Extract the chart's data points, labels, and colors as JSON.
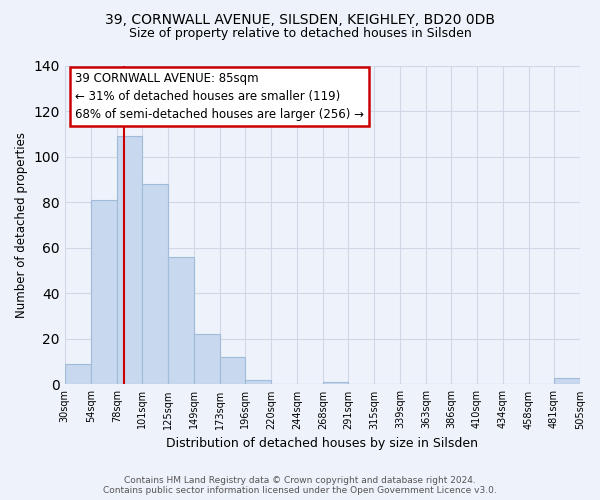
{
  "title1": "39, CORNWALL AVENUE, SILSDEN, KEIGHLEY, BD20 0DB",
  "title2": "Size of property relative to detached houses in Silsden",
  "xlabel": "Distribution of detached houses by size in Silsden",
  "ylabel": "Number of detached properties",
  "bar_color": "#c8d8ee",
  "bar_edge_color": "#a0bcd8",
  "vline_x": 85,
  "vline_color": "#cc0000",
  "bin_edges": [
    30,
    54,
    78,
    101,
    125,
    149,
    173,
    196,
    220,
    244,
    268,
    291,
    315,
    339,
    363,
    386,
    410,
    434,
    458,
    481,
    505
  ],
  "bar_heights": [
    9,
    81,
    109,
    88,
    56,
    22,
    12,
    2,
    0,
    0,
    1,
    0,
    0,
    0,
    0,
    0,
    0,
    0,
    0,
    3
  ],
  "tick_labels": [
    "30sqm",
    "54sqm",
    "78sqm",
    "101sqm",
    "125sqm",
    "149sqm",
    "173sqm",
    "196sqm",
    "220sqm",
    "244sqm",
    "268sqm",
    "291sqm",
    "315sqm",
    "339sqm",
    "363sqm",
    "386sqm",
    "410sqm",
    "434sqm",
    "458sqm",
    "481sqm",
    "505sqm"
  ],
  "ylim": [
    0,
    140
  ],
  "yticks": [
    0,
    20,
    40,
    60,
    80,
    100,
    120,
    140
  ],
  "annotation_title": "39 CORNWALL AVENUE: 85sqm",
  "annotation_line1": "← 31% of detached houses are smaller (119)",
  "annotation_line2": "68% of semi-detached houses are larger (256) →",
  "annotation_box_color": "white",
  "annotation_box_edge": "#cc0000",
  "footer1": "Contains HM Land Registry data © Crown copyright and database right 2024.",
  "footer2": "Contains public sector information licensed under the Open Government Licence v3.0.",
  "background_color": "#eef2fa",
  "grid_color": "#d0d8e8"
}
